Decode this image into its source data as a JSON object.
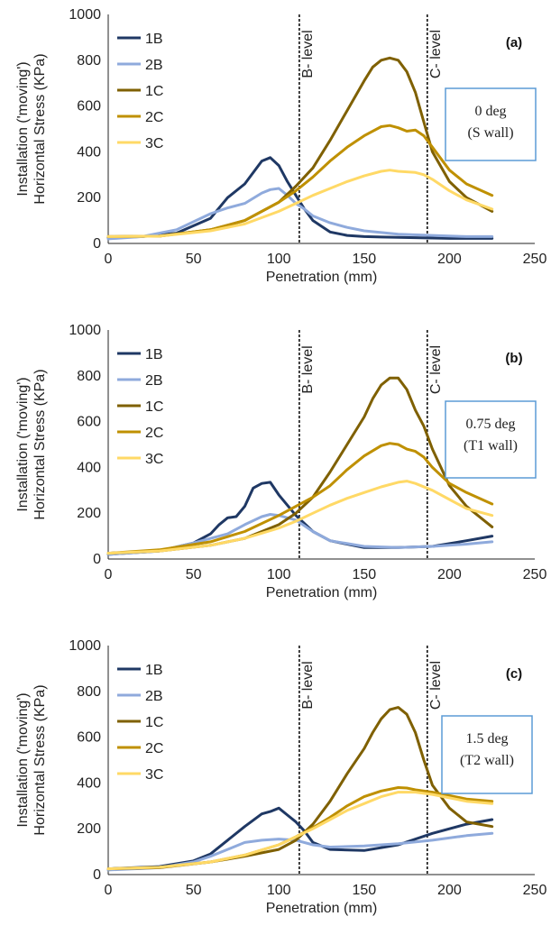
{
  "colors": {
    "1B": "#1f3864",
    "2B": "#8faadc",
    "1C": "#7f6000",
    "2C": "#bf9000",
    "3C": "#ffd966",
    "annotation_border": "#5b9bd5"
  },
  "chart_data": [
    {
      "type": "line",
      "panel_label": "(a)",
      "annotation": [
        "0 deg",
        "(S wall)"
      ],
      "xlabel": "Penetration (mm)",
      "ylabel": [
        "Installation ('moving')",
        "Horizontal Stress (KPa)"
      ],
      "xlim": [
        0,
        250
      ],
      "ylim": [
        0,
        1000
      ],
      "xticks": [
        "0",
        "50",
        "100",
        "150",
        "200",
        "250"
      ],
      "yticks": [
        "0",
        "200",
        "400",
        "600",
        "800",
        "1000"
      ],
      "grid": false,
      "legend_position": "top-left",
      "vlines": [
        {
          "x": 112,
          "label": "B- level"
        },
        {
          "x": 187,
          "label": "C- level"
        }
      ],
      "series": [
        {
          "name": "1B",
          "x": [
            0,
            20,
            40,
            60,
            70,
            80,
            90,
            95,
            100,
            105,
            110,
            115,
            120,
            130,
            140,
            150,
            160,
            180,
            200,
            225
          ],
          "y": [
            25,
            30,
            45,
            110,
            200,
            260,
            360,
            375,
            340,
            270,
            210,
            150,
            100,
            50,
            35,
            30,
            28,
            25,
            22,
            22
          ]
        },
        {
          "name": "2B",
          "x": [
            0,
            20,
            40,
            60,
            70,
            80,
            90,
            95,
            100,
            105,
            110,
            115,
            120,
            130,
            140,
            150,
            170,
            190,
            210,
            225
          ],
          "y": [
            20,
            30,
            60,
            130,
            155,
            175,
            220,
            235,
            240,
            210,
            175,
            150,
            120,
            90,
            70,
            55,
            40,
            35,
            30,
            30
          ]
        },
        {
          "name": "1C",
          "x": [
            0,
            30,
            60,
            80,
            100,
            110,
            120,
            130,
            140,
            150,
            155,
            160,
            165,
            170,
            175,
            180,
            185,
            190,
            200,
            210,
            225
          ],
          "y": [
            30,
            32,
            60,
            100,
            180,
            250,
            330,
            450,
            580,
            710,
            770,
            800,
            810,
            800,
            750,
            660,
            530,
            400,
            270,
            200,
            140
          ]
        },
        {
          "name": "2C",
          "x": [
            0,
            30,
            60,
            80,
            100,
            110,
            120,
            130,
            140,
            150,
            160,
            165,
            170,
            175,
            180,
            185,
            190,
            200,
            210,
            225
          ],
          "y": [
            30,
            32,
            60,
            100,
            180,
            230,
            290,
            360,
            420,
            470,
            510,
            515,
            505,
            490,
            495,
            470,
            420,
            320,
            260,
            210
          ]
        },
        {
          "name": "3C",
          "x": [
            0,
            30,
            60,
            80,
            100,
            110,
            120,
            130,
            140,
            150,
            160,
            165,
            170,
            180,
            185,
            190,
            200,
            210,
            225
          ],
          "y": [
            30,
            32,
            55,
            85,
            140,
            175,
            210,
            240,
            270,
            295,
            315,
            320,
            315,
            310,
            300,
            280,
            230,
            190,
            150
          ]
        }
      ]
    },
    {
      "type": "line",
      "panel_label": "(b)",
      "annotation": [
        "0.75 deg",
        "(T1 wall)"
      ],
      "xlabel": "Penetration (mm)",
      "ylabel": [
        "Installation ('moving')",
        "Horizontal Stress (KPa)"
      ],
      "xlim": [
        0,
        250
      ],
      "ylim": [
        0,
        1000
      ],
      "xticks": [
        "0",
        "50",
        "100",
        "150",
        "200",
        "250"
      ],
      "yticks": [
        "0",
        "200",
        "400",
        "600",
        "800",
        "1000"
      ],
      "grid": false,
      "legend_position": "top-left",
      "vlines": [
        {
          "x": 112,
          "label": "B- level"
        },
        {
          "x": 187,
          "label": "C- level"
        }
      ],
      "series": [
        {
          "name": "1B",
          "x": [
            0,
            30,
            50,
            60,
            65,
            70,
            75,
            80,
            85,
            90,
            95,
            100,
            110,
            120,
            130,
            150,
            170,
            190,
            210,
            225
          ],
          "y": [
            20,
            35,
            70,
            110,
            150,
            180,
            185,
            230,
            310,
            330,
            335,
            280,
            190,
            120,
            80,
            50,
            50,
            55,
            80,
            100
          ]
        },
        {
          "name": "2B",
          "x": [
            0,
            30,
            50,
            70,
            80,
            90,
            95,
            100,
            110,
            120,
            130,
            150,
            170,
            190,
            210,
            225
          ],
          "y": [
            20,
            35,
            70,
            110,
            150,
            185,
            195,
            190,
            170,
            120,
            80,
            55,
            50,
            55,
            65,
            75
          ]
        },
        {
          "name": "1C",
          "x": [
            0,
            30,
            60,
            80,
            100,
            110,
            120,
            130,
            140,
            150,
            155,
            160,
            165,
            170,
            175,
            180,
            185,
            190,
            200,
            210,
            225
          ],
          "y": [
            25,
            35,
            60,
            90,
            150,
            200,
            270,
            380,
            500,
            620,
            700,
            760,
            790,
            790,
            740,
            650,
            580,
            480,
            320,
            230,
            140
          ]
        },
        {
          "name": "2C",
          "x": [
            0,
            30,
            60,
            80,
            100,
            110,
            120,
            130,
            140,
            150,
            160,
            165,
            170,
            175,
            180,
            185,
            190,
            200,
            210,
            225
          ],
          "y": [
            25,
            40,
            75,
            120,
            190,
            230,
            270,
            320,
            390,
            450,
            495,
            505,
            500,
            480,
            470,
            445,
            400,
            330,
            290,
            240
          ]
        },
        {
          "name": "3C",
          "x": [
            0,
            30,
            60,
            80,
            100,
            110,
            120,
            130,
            140,
            150,
            160,
            170,
            175,
            180,
            190,
            200,
            210,
            225
          ],
          "y": [
            25,
            35,
            60,
            90,
            135,
            165,
            200,
            235,
            265,
            290,
            315,
            335,
            340,
            330,
            300,
            260,
            220,
            190
          ]
        }
      ]
    },
    {
      "type": "line",
      "panel_label": "(c)",
      "annotation": [
        "1.5 deg",
        "(T2 wall)"
      ],
      "xlabel": "Penetration (mm)",
      "ylabel": [
        "Installation ('moving')",
        "Horizontal Stress (KPa)"
      ],
      "xlim": [
        0,
        250
      ],
      "ylim": [
        0,
        1000
      ],
      "xticks": [
        "0",
        "50",
        "100",
        "150",
        "200",
        "250"
      ],
      "yticks": [
        "0",
        "200",
        "400",
        "600",
        "800",
        "1000"
      ],
      "grid": false,
      "legend_position": "top-left",
      "vlines": [
        {
          "x": 112,
          "label": "B- level"
        },
        {
          "x": 187,
          "label": "C- level"
        }
      ],
      "series": [
        {
          "name": "1B",
          "x": [
            0,
            30,
            50,
            60,
            70,
            80,
            90,
            95,
            100,
            105,
            110,
            115,
            120,
            130,
            150,
            170,
            190,
            210,
            225
          ],
          "y": [
            25,
            35,
            60,
            90,
            150,
            210,
            265,
            275,
            290,
            260,
            230,
            190,
            140,
            110,
            105,
            130,
            180,
            220,
            240
          ]
        },
        {
          "name": "2B",
          "x": [
            0,
            30,
            50,
            60,
            70,
            80,
            90,
            100,
            110,
            120,
            130,
            150,
            170,
            190,
            210,
            225
          ],
          "y": [
            20,
            30,
            55,
            80,
            110,
            140,
            150,
            155,
            150,
            130,
            120,
            125,
            135,
            150,
            170,
            180
          ]
        },
        {
          "name": "1C",
          "x": [
            0,
            30,
            60,
            80,
            100,
            110,
            120,
            130,
            140,
            150,
            155,
            160,
            165,
            170,
            175,
            180,
            185,
            190,
            200,
            210,
            225
          ],
          "y": [
            25,
            30,
            55,
            80,
            110,
            150,
            220,
            320,
            440,
            550,
            620,
            680,
            720,
            730,
            700,
            620,
            500,
            390,
            290,
            230,
            210
          ]
        },
        {
          "name": "2C",
          "x": [
            0,
            30,
            60,
            80,
            100,
            110,
            120,
            130,
            140,
            150,
            160,
            170,
            175,
            180,
            190,
            200,
            210,
            225
          ],
          "y": [
            25,
            32,
            55,
            85,
            130,
            165,
            205,
            250,
            300,
            340,
            365,
            380,
            378,
            370,
            360,
            345,
            330,
            320
          ]
        },
        {
          "name": "3C",
          "x": [
            0,
            30,
            60,
            80,
            100,
            110,
            120,
            130,
            140,
            150,
            160,
            170,
            180,
            190,
            200,
            210,
            225
          ],
          "y": [
            25,
            32,
            55,
            85,
            130,
            165,
            200,
            240,
            280,
            310,
            340,
            360,
            360,
            350,
            335,
            320,
            310
          ]
        }
      ]
    }
  ]
}
